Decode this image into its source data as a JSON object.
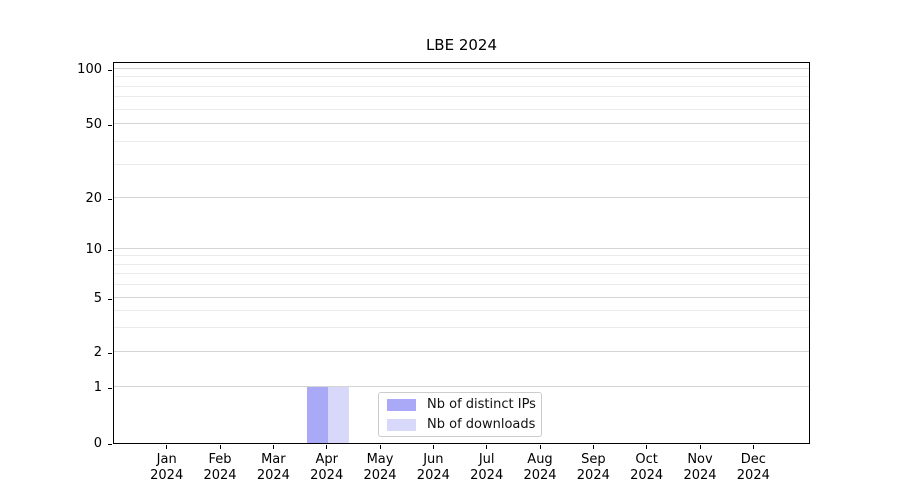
{
  "chart_data": {
    "type": "bar",
    "title": "LBE 2024",
    "x_axis": {
      "months": [
        "Jan",
        "Feb",
        "Mar",
        "Apr",
        "May",
        "Jun",
        "Jul",
        "Aug",
        "Sep",
        "Oct",
        "Nov",
        "Dec"
      ],
      "year": "2024"
    },
    "y_axis": {
      "scale": "symlog",
      "major_ticks": [
        0,
        1,
        2,
        5,
        10,
        20,
        50,
        100
      ],
      "minor_gridlines": [
        3,
        4,
        6,
        7,
        8,
        9,
        30,
        40,
        60,
        70,
        80,
        90
      ],
      "range": [
        0,
        112
      ],
      "grid": "on"
    },
    "series": [
      {
        "name": "Nb of distinct IPs",
        "color": "#a9a9f7",
        "values": [
          0,
          0,
          0,
          1,
          0,
          0,
          0,
          0,
          0,
          0,
          0,
          0
        ]
      },
      {
        "name": "Nb of downloads",
        "color": "#d8d8fa",
        "values": [
          0,
          0,
          0,
          1,
          0,
          0,
          0,
          0,
          0,
          0,
          0,
          0
        ]
      }
    ],
    "legend": {
      "position": "lower center"
    }
  },
  "colors": {
    "grid_major": "#d5d5d5",
    "grid_minor": "#ebebeb",
    "spine": "#000000",
    "background": "#ffffff"
  }
}
